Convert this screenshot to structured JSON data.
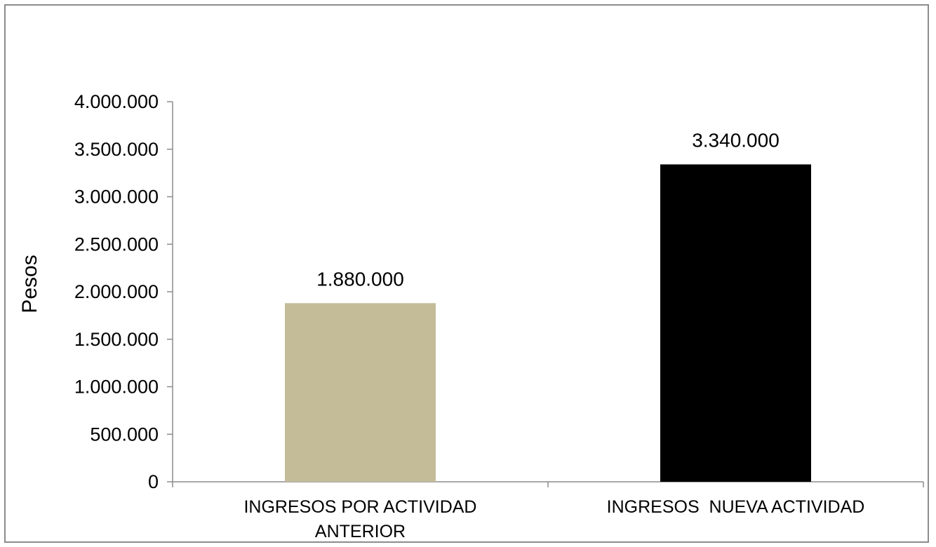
{
  "chart_data": {
    "type": "bar",
    "title": "",
    "xlabel": "",
    "ylabel": "Pesos",
    "ylim": [
      0,
      4000000
    ],
    "yticks": [
      {
        "value": 0,
        "label": "0"
      },
      {
        "value": 500000,
        "label": "500.000"
      },
      {
        "value": 1000000,
        "label": "1.000.000"
      },
      {
        "value": 1500000,
        "label": "1.500.000"
      },
      {
        "value": 2000000,
        "label": "2.000.000"
      },
      {
        "value": 2500000,
        "label": "2.500.000"
      },
      {
        "value": 3000000,
        "label": "3.000.000"
      },
      {
        "value": 3500000,
        "label": "3.500.000"
      },
      {
        "value": 4000000,
        "label": "4.000.000"
      }
    ],
    "categories": [
      {
        "lines": [
          "INGRESOS POR ACTIVIDAD",
          "ANTERIOR"
        ]
      },
      {
        "lines": [
          "INGRESOS  NUEVA ACTIVIDAD"
        ]
      }
    ],
    "values": [
      1880000,
      3340000
    ],
    "data_labels": [
      "1.880.000",
      "3.340.000"
    ],
    "bar_colors": [
      "#c4bc99",
      "#000000"
    ],
    "grid": false,
    "legend": "none"
  }
}
